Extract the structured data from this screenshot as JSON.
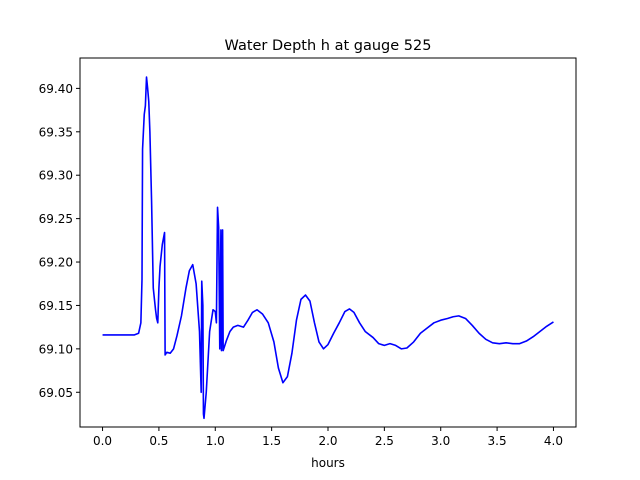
{
  "chart_data": {
    "type": "line",
    "title": "Water Depth h at gauge 525",
    "xlabel": "hours",
    "ylabel": "",
    "xlim": [
      -0.2,
      4.2
    ],
    "ylim": [
      69.01,
      69.435
    ],
    "xticks": [
      0.0,
      0.5,
      1.0,
      1.5,
      2.0,
      2.5,
      3.0,
      3.5,
      4.0
    ],
    "xtick_labels": [
      "0.0",
      "0.5",
      "1.0",
      "1.5",
      "2.0",
      "2.5",
      "3.0",
      "3.5",
      "4.0"
    ],
    "yticks": [
      69.05,
      69.1,
      69.15,
      69.2,
      69.25,
      69.3,
      69.35,
      69.4
    ],
    "ytick_labels": [
      "69.05",
      "69.10",
      "69.15",
      "69.20",
      "69.25",
      "69.30",
      "69.35",
      "69.40"
    ],
    "grid": false,
    "legend": "none",
    "series": [
      {
        "color": "#0000ff",
        "points": [
          [
            0.0,
            69.116
          ],
          [
            0.1,
            69.116
          ],
          [
            0.2,
            69.116
          ],
          [
            0.28,
            69.116
          ],
          [
            0.32,
            69.118
          ],
          [
            0.34,
            69.13
          ],
          [
            0.35,
            69.18
          ],
          [
            0.355,
            69.33
          ],
          [
            0.37,
            69.37
          ],
          [
            0.38,
            69.38
          ],
          [
            0.39,
            69.413
          ],
          [
            0.4,
            69.4
          ],
          [
            0.41,
            69.385
          ],
          [
            0.42,
            69.35
          ],
          [
            0.435,
            69.27
          ],
          [
            0.45,
            69.17
          ],
          [
            0.47,
            69.145
          ],
          [
            0.48,
            69.135
          ],
          [
            0.49,
            69.13
          ],
          [
            0.5,
            69.17
          ],
          [
            0.51,
            69.195
          ],
          [
            0.53,
            69.22
          ],
          [
            0.55,
            69.234
          ],
          [
            0.555,
            69.093
          ],
          [
            0.57,
            69.096
          ],
          [
            0.6,
            69.095
          ],
          [
            0.63,
            69.1
          ],
          [
            0.66,
            69.115
          ],
          [
            0.7,
            69.138
          ],
          [
            0.74,
            69.17
          ],
          [
            0.77,
            69.19
          ],
          [
            0.8,
            69.197
          ],
          [
            0.83,
            69.175
          ],
          [
            0.86,
            69.12
          ],
          [
            0.875,
            69.05
          ],
          [
            0.88,
            69.178
          ],
          [
            0.89,
            69.15
          ],
          [
            0.895,
            69.025
          ],
          [
            0.9,
            69.02
          ],
          [
            0.92,
            69.05
          ],
          [
            0.95,
            69.12
          ],
          [
            0.98,
            69.145
          ],
          [
            1.0,
            69.143
          ],
          [
            1.01,
            69.13
          ],
          [
            1.02,
            69.263
          ],
          [
            1.03,
            69.24
          ],
          [
            1.04,
            69.1
          ],
          [
            1.05,
            69.237
          ],
          [
            1.055,
            69.098
          ],
          [
            1.065,
            69.237
          ],
          [
            1.07,
            69.098
          ],
          [
            1.1,
            69.11
          ],
          [
            1.13,
            69.12
          ],
          [
            1.16,
            69.125
          ],
          [
            1.2,
            69.127
          ],
          [
            1.25,
            69.125
          ],
          [
            1.29,
            69.133
          ],
          [
            1.33,
            69.142
          ],
          [
            1.37,
            69.145
          ],
          [
            1.42,
            69.14
          ],
          [
            1.47,
            69.13
          ],
          [
            1.52,
            69.108
          ],
          [
            1.56,
            69.078
          ],
          [
            1.6,
            69.061
          ],
          [
            1.64,
            69.068
          ],
          [
            1.68,
            69.095
          ],
          [
            1.72,
            69.133
          ],
          [
            1.76,
            69.157
          ],
          [
            1.8,
            69.162
          ],
          [
            1.84,
            69.155
          ],
          [
            1.88,
            69.13
          ],
          [
            1.92,
            69.108
          ],
          [
            1.96,
            69.1
          ],
          [
            2.0,
            69.105
          ],
          [
            2.05,
            69.118
          ],
          [
            2.1,
            69.13
          ],
          [
            2.15,
            69.143
          ],
          [
            2.19,
            69.146
          ],
          [
            2.23,
            69.142
          ],
          [
            2.28,
            69.13
          ],
          [
            2.33,
            69.12
          ],
          [
            2.4,
            69.113
          ],
          [
            2.45,
            69.106
          ],
          [
            2.5,
            69.104
          ],
          [
            2.55,
            69.106
          ],
          [
            2.6,
            69.104
          ],
          [
            2.65,
            69.1
          ],
          [
            2.7,
            69.101
          ],
          [
            2.76,
            69.108
          ],
          [
            2.82,
            69.118
          ],
          [
            2.88,
            69.124
          ],
          [
            2.94,
            69.13
          ],
          [
            3.0,
            69.133
          ],
          [
            3.06,
            69.135
          ],
          [
            3.11,
            69.137
          ],
          [
            3.16,
            69.138
          ],
          [
            3.22,
            69.135
          ],
          [
            3.28,
            69.127
          ],
          [
            3.34,
            69.118
          ],
          [
            3.4,
            69.111
          ],
          [
            3.46,
            69.107
          ],
          [
            3.52,
            69.106
          ],
          [
            3.58,
            69.107
          ],
          [
            3.64,
            69.106
          ],
          [
            3.7,
            69.106
          ],
          [
            3.76,
            69.109
          ],
          [
            3.82,
            69.114
          ],
          [
            3.88,
            69.12
          ],
          [
            3.94,
            69.126
          ],
          [
            4.0,
            69.131
          ]
        ]
      }
    ]
  }
}
